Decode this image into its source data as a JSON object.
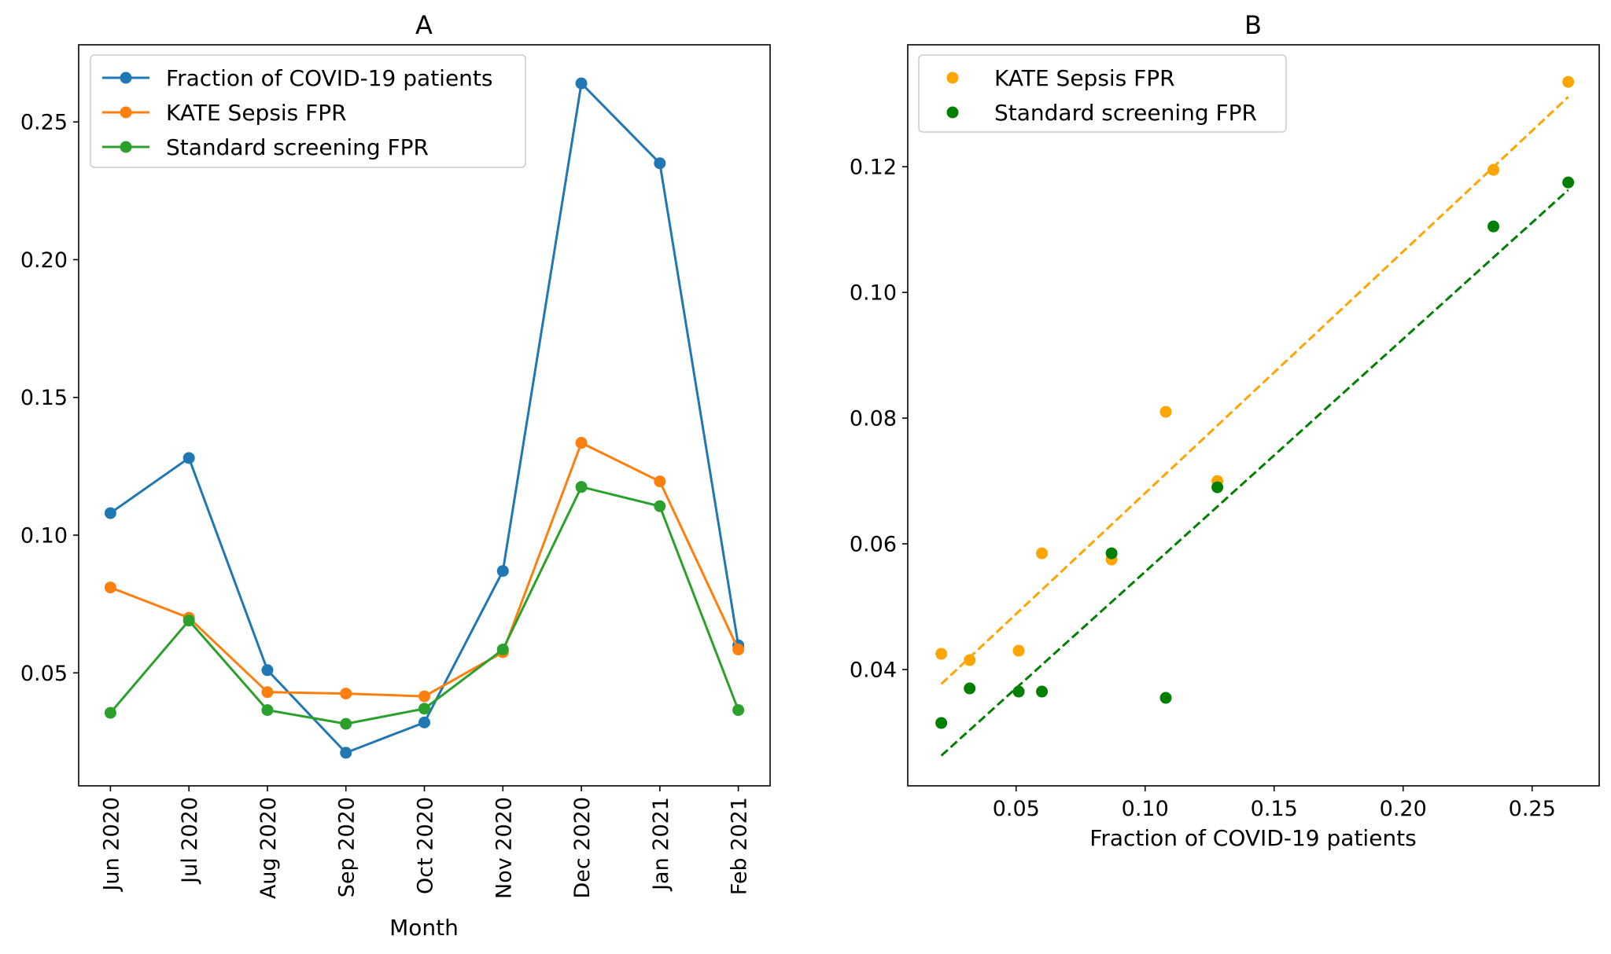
{
  "chart_data": [
    {
      "type": "line",
      "title": "A",
      "xlabel": "Month",
      "ylabel": "",
      "categories": [
        "Jun 2020",
        "Jul 2020",
        "Aug 2020",
        "Sep 2020",
        "Oct 2020",
        "Nov 2020",
        "Dec 2020",
        "Jan 2021",
        "Feb 2021"
      ],
      "ylim": [
        0.009,
        0.278
      ],
      "yticks": [
        0.05,
        0.1,
        0.15,
        0.2,
        0.25
      ],
      "ytick_labels": [
        "0.05",
        "0.10",
        "0.15",
        "0.20",
        "0.25"
      ],
      "grid": false,
      "legend_position": "top-left",
      "series": [
        {
          "name": "Fraction of COVID-19 patients",
          "color": "#1f77b4",
          "values": [
            0.108,
            0.128,
            0.051,
            0.021,
            0.032,
            0.087,
            0.264,
            0.235,
            0.06
          ]
        },
        {
          "name": "KATE Sepsis FPR",
          "color": "#ff7f0e",
          "values": [
            0.081,
            0.07,
            0.043,
            0.0425,
            0.0415,
            0.0575,
            0.1335,
            0.1195,
            0.0585
          ]
        },
        {
          "name": "Standard screening FPR",
          "color": "#2ca02c",
          "values": [
            0.0355,
            0.069,
            0.0365,
            0.0315,
            0.037,
            0.0585,
            0.1175,
            0.1105,
            0.0365
          ]
        }
      ]
    },
    {
      "type": "scatter",
      "title": "B",
      "xlabel": "Fraction of COVID-19 patients",
      "ylabel": "",
      "xlim": [
        0.008,
        0.276
      ],
      "ylim": [
        0.0215,
        0.1394
      ],
      "xticks": [
        0.05,
        0.1,
        0.15,
        0.2,
        0.25
      ],
      "xtick_labels": [
        "0.05",
        "0.10",
        "0.15",
        "0.20",
        "0.25"
      ],
      "yticks": [
        0.04,
        0.06,
        0.08,
        0.1,
        0.12
      ],
      "ytick_labels": [
        "0.04",
        "0.06",
        "0.08",
        "0.10",
        "0.12"
      ],
      "grid": false,
      "legend_position": "top-left",
      "series": [
        {
          "name": "KATE Sepsis FPR",
          "color": "#ffa500",
          "x": [
            0.021,
            0.032,
            0.051,
            0.06,
            0.087,
            0.108,
            0.128,
            0.235,
            0.264
          ],
          "y": [
            0.0425,
            0.0415,
            0.043,
            0.0585,
            0.0575,
            0.081,
            0.07,
            0.1195,
            0.1335
          ],
          "fit": {
            "x": [
              0.021,
              0.264
            ],
            "y": [
              0.0377,
              0.1311
            ]
          }
        },
        {
          "name": "Standard screening FPR",
          "color": "#008000",
          "x": [
            0.021,
            0.032,
            0.051,
            0.06,
            0.087,
            0.108,
            0.128,
            0.235,
            0.264
          ],
          "y": [
            0.0315,
            0.037,
            0.0365,
            0.0365,
            0.0585,
            0.0355,
            0.069,
            0.1105,
            0.1175
          ],
          "fit": {
            "x": [
              0.021,
              0.264
            ],
            "y": [
              0.0263,
              0.1163
            ]
          }
        }
      ]
    }
  ]
}
